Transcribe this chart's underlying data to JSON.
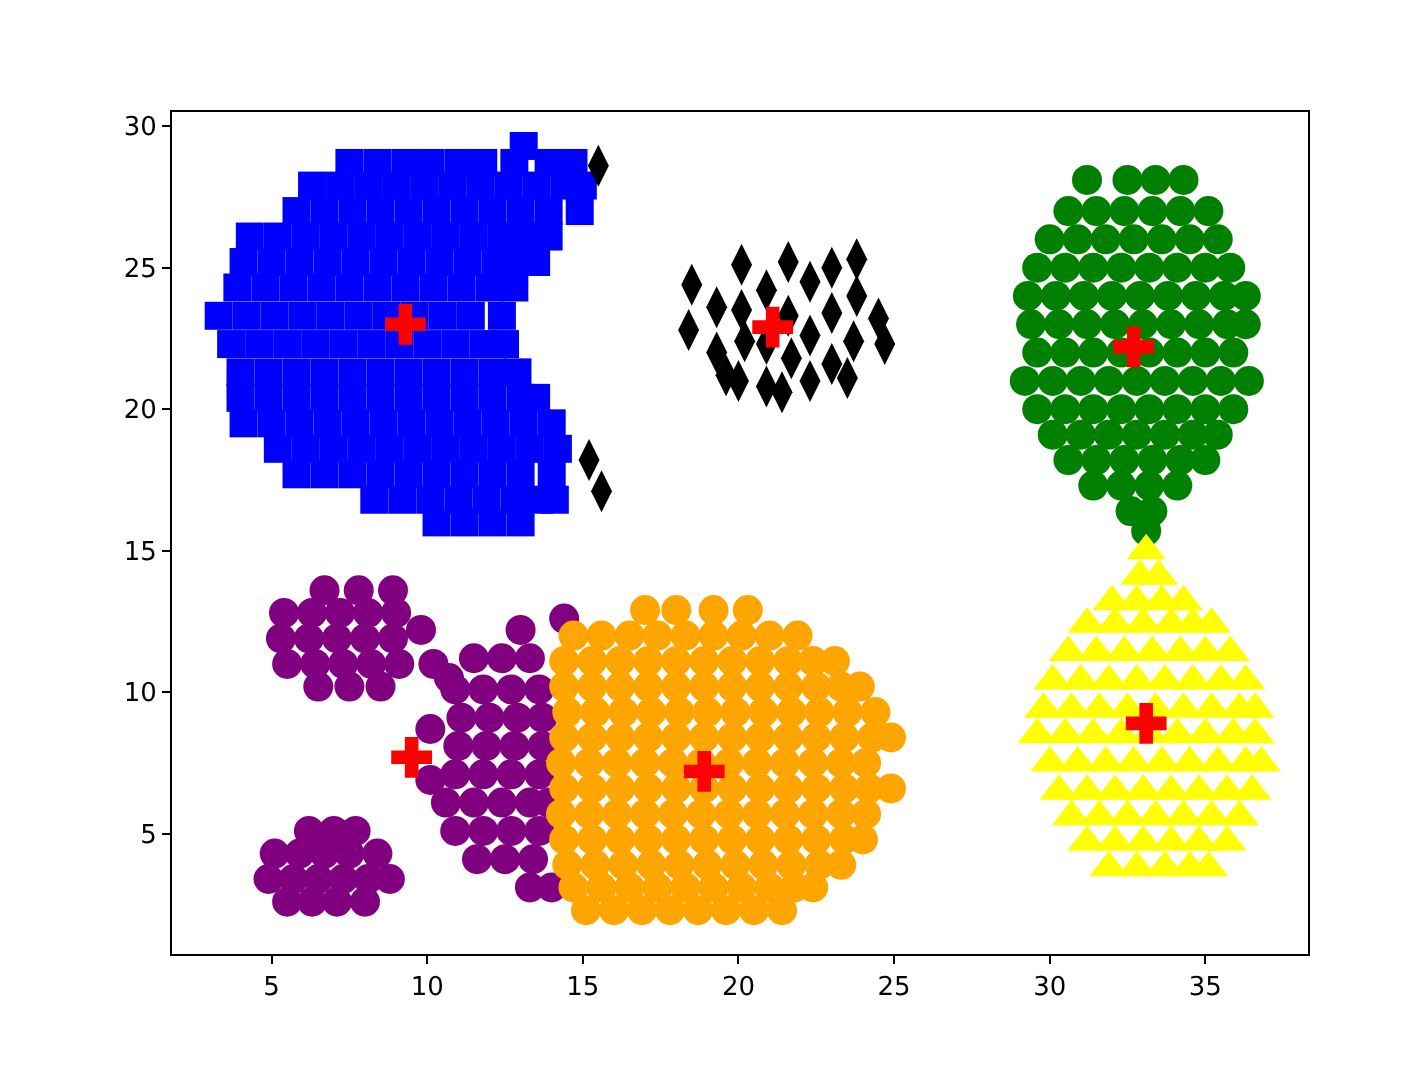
{
  "chart_data": {
    "type": "scatter",
    "xlim": [
      1.8,
      38.3
    ],
    "ylim": [
      0.75,
      30.5
    ],
    "xticks": [
      5,
      10,
      15,
      20,
      25,
      30,
      35
    ],
    "yticks": [
      5,
      10,
      15,
      20,
      25,
      30
    ],
    "series": [
      {
        "color": "#0000ff",
        "marker": "square",
        "x": [
          13.1,
          7.5,
          8.4,
          9.3,
          10.1,
          11.0,
          11.8,
          12.8,
          13.9,
          14.7,
          6.3,
          7.2,
          8.1,
          9.0,
          9.9,
          10.8,
          11.7,
          12.6,
          13.5,
          14.4,
          15.0,
          5.8,
          6.7,
          7.6,
          8.5,
          9.4,
          10.3,
          11.2,
          12.1,
          13.0,
          13.9,
          14.9,
          4.3,
          5.2,
          6.1,
          7.0,
          7.9,
          8.8,
          9.7,
          10.6,
          11.5,
          12.4,
          13.2,
          13.9,
          4.1,
          5.0,
          5.9,
          6.8,
          7.7,
          8.6,
          9.5,
          10.4,
          11.3,
          12.2,
          13.0,
          13.5,
          3.9,
          4.8,
          5.7,
          6.6,
          7.5,
          8.4,
          9.3,
          10.2,
          11.1,
          12.0,
          12.8,
          3.3,
          4.2,
          5.1,
          6.0,
          6.9,
          7.8,
          8.7,
          9.6,
          10.5,
          11.4,
          12.4,
          3.7,
          4.6,
          5.5,
          6.4,
          7.3,
          8.2,
          9.1,
          10.0,
          10.9,
          11.8,
          12.5,
          4.0,
          4.9,
          5.8,
          6.7,
          7.6,
          8.5,
          9.4,
          10.3,
          11.2,
          12.1,
          12.9,
          4.0,
          4.9,
          5.8,
          6.7,
          7.6,
          8.5,
          9.4,
          10.3,
          11.2,
          12.1,
          13.0,
          13.5,
          4.1,
          5.0,
          5.9,
          6.8,
          7.7,
          8.6,
          9.5,
          10.4,
          11.3,
          12.2,
          13.1,
          14.0,
          5.2,
          6.1,
          7.0,
          7.9,
          8.8,
          9.7,
          10.6,
          11.5,
          12.4,
          13.3,
          14.2,
          5.8,
          6.7,
          7.6,
          8.5,
          9.4,
          10.3,
          11.2,
          12.1,
          13.0,
          14.0,
          8.3,
          9.2,
          10.1,
          11.0,
          11.9,
          12.8,
          13.6,
          14.1,
          10.3,
          11.2,
          12.1,
          13.0
        ],
        "values": [
          29.3,
          28.7,
          28.7,
          28.7,
          28.7,
          28.7,
          28.7,
          28.7,
          28.7,
          28.7,
          27.9,
          27.9,
          27.9,
          27.9,
          27.9,
          27.9,
          27.9,
          27.9,
          27.9,
          27.9,
          27.9,
          27.0,
          27.0,
          27.0,
          27.0,
          27.0,
          27.0,
          27.0,
          27.0,
          27.0,
          27.0,
          27.0,
          26.1,
          26.1,
          26.1,
          26.1,
          26.1,
          26.1,
          26.1,
          26.1,
          26.1,
          26.1,
          26.1,
          26.1,
          25.2,
          25.2,
          25.2,
          25.2,
          25.2,
          25.2,
          25.2,
          25.2,
          25.2,
          25.2,
          25.2,
          25.2,
          24.3,
          24.3,
          24.3,
          24.3,
          24.3,
          24.3,
          24.3,
          24.3,
          24.3,
          24.3,
          24.3,
          23.3,
          23.3,
          23.3,
          23.3,
          23.3,
          23.3,
          23.3,
          23.3,
          23.3,
          23.3,
          23.3,
          22.3,
          22.3,
          22.3,
          22.3,
          22.3,
          22.3,
          22.3,
          22.3,
          22.3,
          22.3,
          22.3,
          21.3,
          21.3,
          21.3,
          21.3,
          21.3,
          21.3,
          21.3,
          21.3,
          21.3,
          21.3,
          21.3,
          20.4,
          20.4,
          20.4,
          20.4,
          20.4,
          20.4,
          20.4,
          20.4,
          20.4,
          20.4,
          20.4,
          20.4,
          19.5,
          19.5,
          19.5,
          19.5,
          19.5,
          19.5,
          19.5,
          19.5,
          19.5,
          19.5,
          19.5,
          19.5,
          18.6,
          18.6,
          18.6,
          18.6,
          18.6,
          18.6,
          18.6,
          18.6,
          18.6,
          18.6,
          18.6,
          17.7,
          17.7,
          17.7,
          17.7,
          17.7,
          17.7,
          17.7,
          17.7,
          17.7,
          17.7,
          16.8,
          16.8,
          16.8,
          16.8,
          16.8,
          16.8,
          16.8,
          16.8,
          16.0,
          16.0,
          16.0,
          16.0
        ]
      },
      {
        "color": "#000000",
        "marker": "diamond",
        "x": [
          15.5,
          15.2,
          15.6,
          18.5,
          18.4,
          19.3,
          19.3,
          19.6,
          20.1,
          20.1,
          20.2,
          20.0,
          20.9,
          20.9,
          20.9,
          21.6,
          21.6,
          21.7,
          21.4,
          22.3,
          22.3,
          22.3,
          23.0,
          23.0,
          23.0,
          23.8,
          23.8,
          23.7,
          24.5,
          24.7,
          23.5
        ],
        "values": [
          28.6,
          18.2,
          17.1,
          24.4,
          22.8,
          23.6,
          22.0,
          21.2,
          25.1,
          23.5,
          22.4,
          21.0,
          24.2,
          22.3,
          20.8,
          25.2,
          23.3,
          21.8,
          20.6,
          24.5,
          22.6,
          21.0,
          25.0,
          23.4,
          21.6,
          25.3,
          24.0,
          22.4,
          23.2,
          22.3,
          21.1
        ]
      },
      {
        "color": "#008000",
        "marker": "circle",
        "x": [
          31.2,
          32.5,
          33.4,
          34.3,
          30.6,
          31.5,
          32.4,
          33.3,
          34.2,
          35.1,
          30.0,
          30.9,
          31.8,
          32.7,
          33.6,
          34.5,
          35.4,
          29.6,
          30.5,
          31.4,
          32.3,
          33.2,
          34.1,
          35.0,
          35.8,
          29.3,
          30.2,
          31.1,
          32.0,
          32.9,
          33.8,
          34.7,
          35.6,
          36.3,
          29.4,
          30.3,
          31.2,
          32.1,
          33.0,
          33.9,
          34.8,
          35.7,
          36.3,
          29.6,
          30.5,
          31.4,
          32.3,
          33.2,
          34.1,
          35.0,
          35.9,
          29.2,
          30.1,
          31.0,
          31.9,
          32.8,
          33.7,
          34.6,
          35.5,
          36.4,
          29.6,
          30.5,
          31.4,
          32.3,
          33.2,
          34.1,
          35.0,
          35.9,
          30.1,
          31.0,
          31.9,
          32.8,
          33.7,
          34.6,
          35.4,
          30.6,
          31.5,
          32.4,
          33.3,
          34.2,
          35.0,
          31.4,
          32.3,
          33.2,
          34.1,
          32.6,
          33.3,
          33.1
        ],
        "values": [
          28.1,
          28.1,
          28.1,
          28.1,
          27.0,
          27.0,
          27.0,
          27.0,
          27.0,
          27.0,
          26.0,
          26.0,
          26.0,
          26.0,
          26.0,
          26.0,
          26.0,
          25.0,
          25.0,
          25.0,
          25.0,
          25.0,
          25.0,
          25.0,
          25.0,
          24.0,
          24.0,
          24.0,
          24.0,
          24.0,
          24.0,
          24.0,
          24.0,
          24.0,
          23.0,
          23.0,
          23.0,
          23.0,
          23.0,
          23.0,
          23.0,
          23.0,
          23.0,
          22.0,
          22.0,
          22.0,
          22.0,
          22.0,
          22.0,
          22.0,
          22.0,
          21.0,
          21.0,
          21.0,
          21.0,
          21.0,
          21.0,
          21.0,
          21.0,
          21.0,
          20.0,
          20.0,
          20.0,
          20.0,
          20.0,
          20.0,
          20.0,
          20.0,
          19.1,
          19.1,
          19.1,
          19.1,
          19.1,
          19.1,
          19.1,
          18.2,
          18.2,
          18.2,
          18.2,
          18.2,
          18.2,
          17.3,
          17.3,
          17.3,
          17.3,
          16.4,
          16.4,
          15.7
        ]
      },
      {
        "color": "#ffff00",
        "marker": "triangle",
        "x": [
          33.1,
          32.9,
          33.5,
          32.0,
          32.8,
          33.6,
          34.3,
          31.2,
          32.1,
          33.0,
          33.9,
          34.6,
          35.2,
          30.6,
          31.5,
          32.4,
          33.3,
          34.2,
          35.0,
          35.8,
          30.1,
          31.0,
          31.9,
          32.8,
          33.7,
          34.6,
          35.5,
          36.3,
          29.8,
          30.7,
          31.6,
          32.5,
          33.4,
          34.3,
          35.2,
          36.1,
          36.6,
          29.6,
          30.5,
          31.4,
          32.3,
          33.2,
          34.1,
          35.0,
          35.9,
          36.6,
          30.0,
          30.9,
          31.8,
          32.7,
          33.6,
          34.5,
          35.4,
          36.3,
          36.8,
          30.3,
          31.2,
          32.1,
          33.0,
          33.9,
          34.8,
          35.7,
          36.5,
          30.7,
          31.6,
          32.5,
          33.4,
          34.3,
          35.2,
          36.1,
          31.2,
          32.1,
          33.0,
          33.9,
          34.8,
          35.7,
          31.9,
          32.8,
          33.7,
          34.5,
          35.1
        ],
        "values": [
          15.0,
          14.1,
          14.1,
          13.2,
          13.2,
          13.2,
          13.2,
          12.4,
          12.4,
          12.4,
          12.4,
          12.4,
          12.4,
          11.4,
          11.4,
          11.4,
          11.4,
          11.4,
          11.4,
          11.4,
          10.4,
          10.4,
          10.4,
          10.4,
          10.4,
          10.4,
          10.4,
          10.4,
          9.4,
          9.4,
          9.4,
          9.4,
          9.4,
          9.4,
          9.4,
          9.4,
          9.4,
          8.5,
          8.5,
          8.5,
          8.5,
          8.5,
          8.5,
          8.5,
          8.5,
          8.5,
          7.5,
          7.5,
          7.5,
          7.5,
          7.5,
          7.5,
          7.5,
          7.5,
          7.5,
          6.5,
          6.5,
          6.5,
          6.5,
          6.5,
          6.5,
          6.5,
          6.5,
          5.6,
          5.6,
          5.6,
          5.6,
          5.6,
          5.6,
          5.6,
          4.7,
          4.7,
          4.7,
          4.7,
          4.7,
          4.7,
          3.8,
          3.8,
          3.8,
          3.8,
          3.8
        ]
      },
      {
        "color": "#800080",
        "marker": "circle",
        "x": [
          6.7,
          7.8,
          8.9,
          5.4,
          6.3,
          7.2,
          8.1,
          9.0,
          9.8,
          5.3,
          6.2,
          7.1,
          8.0,
          8.9,
          5.5,
          6.4,
          7.3,
          8.2,
          9.1,
          10.2,
          6.5,
          7.5,
          8.5,
          10.7,
          10.1,
          10.1,
          14.4,
          13.0,
          11.5,
          12.4,
          13.3,
          10.9,
          11.8,
          12.7,
          13.6,
          11.1,
          12.0,
          12.9,
          13.7,
          11.0,
          11.9,
          12.8,
          13.7,
          10.9,
          11.8,
          12.7,
          13.6,
          10.6,
          11.5,
          12.4,
          13.3,
          13.9,
          10.9,
          11.8,
          12.7,
          13.6,
          11.6,
          12.5,
          13.4,
          13.3,
          14.0,
          6.2,
          7.0,
          7.7,
          5.1,
          5.9,
          6.7,
          7.5,
          8.4,
          4.9,
          5.7,
          6.5,
          7.3,
          8.1,
          8.8,
          5.5,
          6.3,
          7.1,
          8.0
        ],
        "values": [
          13.6,
          13.6,
          13.6,
          12.8,
          12.8,
          12.8,
          12.8,
          12.8,
          12.2,
          11.9,
          11.9,
          11.9,
          11.9,
          11.9,
          11.0,
          11.0,
          11.0,
          11.0,
          11.0,
          11.0,
          10.2,
          10.2,
          10.2,
          10.5,
          8.7,
          6.9,
          12.6,
          12.2,
          11.2,
          11.2,
          11.2,
          10.1,
          10.1,
          10.1,
          10.1,
          9.1,
          9.1,
          9.1,
          9.1,
          8.1,
          8.1,
          8.1,
          8.1,
          7.1,
          7.1,
          7.1,
          7.1,
          6.1,
          6.1,
          6.1,
          6.1,
          6.1,
          5.1,
          5.1,
          5.1,
          5.1,
          4.1,
          4.1,
          4.1,
          3.1,
          3.1,
          5.1,
          5.1,
          5.1,
          4.3,
          4.3,
          4.3,
          4.3,
          4.3,
          3.4,
          3.4,
          3.4,
          3.4,
          3.4,
          3.4,
          2.6,
          2.6,
          2.6,
          2.6
        ]
      },
      {
        "color": "#ffa500",
        "marker": "circle",
        "x": [
          17.0,
          18.0,
          19.2,
          20.3,
          14.7,
          15.6,
          16.5,
          17.4,
          18.3,
          19.2,
          20.1,
          21.0,
          21.9,
          14.4,
          15.3,
          16.2,
          17.1,
          18.0,
          18.9,
          19.8,
          20.7,
          21.6,
          22.4,
          23.1,
          14.4,
          15.3,
          16.2,
          17.1,
          18.0,
          18.9,
          19.8,
          20.7,
          21.6,
          22.5,
          23.3,
          23.9,
          14.5,
          15.4,
          16.3,
          17.2,
          18.1,
          19.0,
          19.9,
          20.8,
          21.7,
          22.6,
          23.5,
          24.4,
          14.4,
          15.3,
          16.2,
          17.1,
          18.0,
          18.9,
          19.8,
          20.7,
          21.6,
          22.5,
          23.4,
          24.3,
          24.9,
          14.3,
          15.2,
          16.1,
          17.0,
          17.9,
          18.8,
          19.7,
          20.6,
          21.5,
          22.4,
          23.3,
          24.1,
          14.4,
          15.3,
          16.2,
          17.1,
          18.0,
          18.9,
          19.8,
          20.7,
          21.6,
          22.5,
          23.4,
          24.2,
          24.9,
          14.3,
          15.2,
          16.1,
          17.0,
          17.9,
          18.8,
          19.7,
          20.6,
          21.5,
          22.4,
          23.3,
          24.1,
          14.4,
          15.3,
          16.2,
          17.1,
          18.0,
          18.9,
          19.8,
          20.7,
          21.6,
          22.5,
          23.4,
          24.0,
          14.5,
          15.4,
          16.3,
          17.2,
          18.1,
          19.0,
          19.9,
          20.8,
          21.7,
          22.6,
          23.3,
          14.7,
          15.6,
          16.5,
          17.4,
          18.3,
          19.2,
          20.1,
          21.0,
          21.8,
          22.4,
          15.1,
          16.0,
          16.9,
          17.8,
          18.7,
          19.6,
          20.5,
          21.4
        ],
        "values": [
          12.9,
          12.9,
          12.9,
          12.9,
          12.0,
          12.0,
          12.0,
          12.0,
          12.0,
          12.0,
          12.0,
          12.0,
          12.0,
          11.1,
          11.1,
          11.1,
          11.1,
          11.1,
          11.1,
          11.1,
          11.1,
          11.1,
          11.1,
          11.1,
          10.2,
          10.2,
          10.2,
          10.2,
          10.2,
          10.2,
          10.2,
          10.2,
          10.2,
          10.2,
          10.2,
          10.2,
          9.3,
          9.3,
          9.3,
          9.3,
          9.3,
          9.3,
          9.3,
          9.3,
          9.3,
          9.3,
          9.3,
          9.3,
          8.4,
          8.4,
          8.4,
          8.4,
          8.4,
          8.4,
          8.4,
          8.4,
          8.4,
          8.4,
          8.4,
          8.4,
          8.4,
          7.5,
          7.5,
          7.5,
          7.5,
          7.5,
          7.5,
          7.5,
          7.5,
          7.5,
          7.5,
          7.5,
          7.5,
          6.6,
          6.6,
          6.6,
          6.6,
          6.6,
          6.6,
          6.6,
          6.6,
          6.6,
          6.6,
          6.6,
          6.6,
          6.6,
          5.7,
          5.7,
          5.7,
          5.7,
          5.7,
          5.7,
          5.7,
          5.7,
          5.7,
          5.7,
          5.7,
          5.7,
          4.8,
          4.8,
          4.8,
          4.8,
          4.8,
          4.8,
          4.8,
          4.8,
          4.8,
          4.8,
          4.8,
          4.8,
          3.9,
          3.9,
          3.9,
          3.9,
          3.9,
          3.9,
          3.9,
          3.9,
          3.9,
          3.9,
          3.9,
          3.1,
          3.1,
          3.1,
          3.1,
          3.1,
          3.1,
          3.1,
          3.1,
          3.1,
          3.1,
          2.3,
          2.3,
          2.3,
          2.3,
          2.3,
          2.3,
          2.3,
          2.3
        ]
      },
      {
        "color": "#ff0000",
        "marker": "cross",
        "x": [
          9.3,
          21.1,
          32.7,
          33.1,
          18.9,
          9.5
        ],
        "values": [
          23.0,
          22.9,
          22.2,
          8.9,
          7.2,
          7.7
        ]
      }
    ]
  }
}
